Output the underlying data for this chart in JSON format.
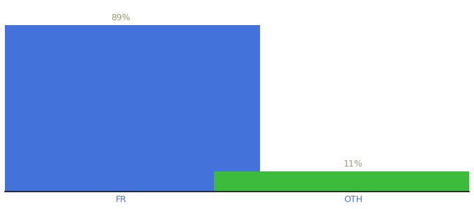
{
  "categories": [
    "FR",
    "OTH"
  ],
  "values": [
    89,
    11
  ],
  "bar_colors": [
    "#4472db",
    "#3dbb3d"
  ],
  "label_texts": [
    "89%",
    "11%"
  ],
  "label_color": "#999977",
  "xtick_color": "#4472db",
  "background_color": "#ffffff",
  "bar_width": 0.6,
  "x_positions": [
    0.25,
    0.75
  ],
  "xlim": [
    0.0,
    1.0
  ],
  "ylim": [
    0,
    100
  ],
  "tick_fontsize": 9,
  "label_fontsize": 9
}
